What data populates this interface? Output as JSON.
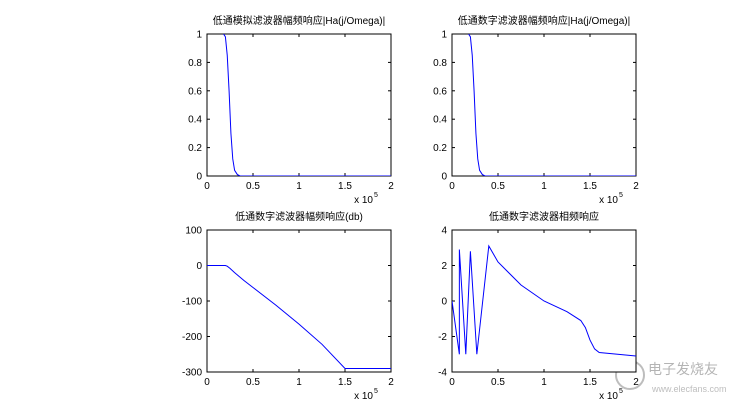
{
  "chart_data": [
    {
      "type": "line",
      "title": "低通模拟滤波器幅频响应|Ha(j/Omega)|",
      "x": [
        0.18,
        0.2,
        0.22,
        0.24,
        0.26,
        0.28,
        0.3,
        0.33,
        0.36,
        0.5,
        1,
        1.5,
        2
      ],
      "values": [
        1,
        0.98,
        0.85,
        0.6,
        0.3,
        0.12,
        0.04,
        0.01,
        0,
        0,
        0,
        0,
        0
      ],
      "color": "#0000ff",
      "xlim": [
        0,
        2
      ],
      "xticks": [
        0,
        0.5,
        1,
        1.5,
        2
      ],
      "ylim": [
        0,
        1
      ],
      "yticks": [
        0,
        0.2,
        0.4,
        0.6,
        0.8,
        1
      ],
      "x_multiplier": {
        "base": "x 10",
        "exponent": "5"
      }
    },
    {
      "type": "line",
      "title": "低通数字滤波器幅频响应|Ha(j/Omega)|",
      "x": [
        0.18,
        0.2,
        0.22,
        0.24,
        0.26,
        0.28,
        0.3,
        0.33,
        0.36,
        0.5,
        1,
        1.5,
        2
      ],
      "values": [
        1,
        0.98,
        0.85,
        0.6,
        0.3,
        0.12,
        0.04,
        0.01,
        0,
        0,
        0,
        0,
        0
      ],
      "color": "#0000ff",
      "xlim": [
        0,
        2
      ],
      "xticks": [
        0,
        0.5,
        1,
        1.5,
        2
      ],
      "ylim": [
        0,
        1
      ],
      "yticks": [
        0,
        0.2,
        0.4,
        0.6,
        0.8,
        1
      ],
      "x_multiplier": {
        "base": "x 10",
        "exponent": "5"
      }
    },
    {
      "type": "line",
      "title": "低通数字滤波器幅频响应(db)",
      "x": [
        0,
        0.1,
        0.2,
        0.22,
        0.25,
        0.3,
        0.4,
        0.5,
        0.75,
        1,
        1.25,
        1.5,
        1.75,
        2
      ],
      "values": [
        0,
        0,
        0,
        -2,
        -8,
        -20,
        -42,
        -62,
        -112,
        -165,
        -222,
        -290,
        -290,
        -290
      ],
      "color": "#0000ff",
      "xlim": [
        0,
        2
      ],
      "xticks": [
        0,
        0.5,
        1,
        1.5,
        2
      ],
      "ylim": [
        -300,
        100
      ],
      "yticks": [
        -300,
        -200,
        -100,
        0,
        100
      ],
      "x_multiplier": {
        "base": "x 10",
        "exponent": "5"
      }
    },
    {
      "type": "line",
      "title": "低通数字滤波器相频响应",
      "x": [
        0,
        0.08,
        0.08,
        0.15,
        0.2,
        0.27,
        0.4,
        0.4,
        0.5,
        0.75,
        1,
        1.25,
        1.4,
        1.45,
        1.5,
        1.55,
        1.6,
        1.8,
        2
      ],
      "values": [
        0,
        -3,
        2.9,
        -3,
        2.8,
        -3,
        3.1,
        3.1,
        2.2,
        0.9,
        0,
        -0.6,
        -1.1,
        -1.5,
        -2.2,
        -2.7,
        -2.9,
        -3,
        -3.1
      ],
      "color": "#0000ff",
      "xlim": [
        0,
        2
      ],
      "xticks": [
        0,
        0.5,
        1,
        1.5,
        2
      ],
      "ylim": [
        -4,
        4
      ],
      "yticks": [
        -4,
        -2,
        0,
        2,
        4
      ],
      "x_multiplier": {
        "base": "x 10",
        "exponent": "5"
      }
    }
  ],
  "watermark": {
    "logo": "电子发烧友",
    "url": "www.elecfans.com"
  }
}
